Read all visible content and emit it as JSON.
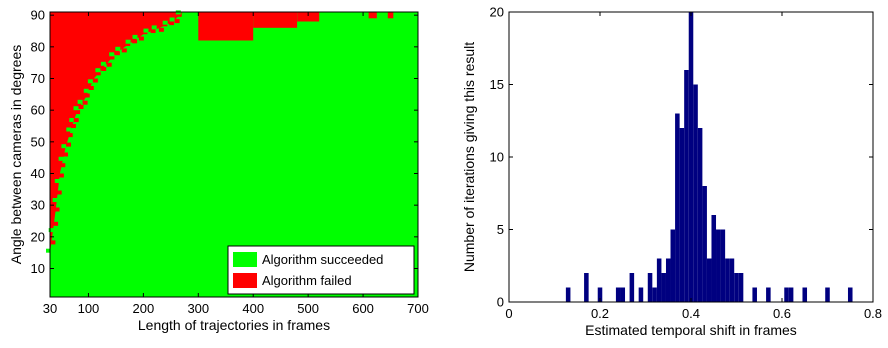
{
  "chart_data": [
    {
      "type": "heatmap",
      "title": "",
      "xlabel": "Length of trajectories in frames",
      "ylabel": "Angle between cameras in degrees",
      "xlim": [
        30,
        700
      ],
      "ylim": [
        1,
        91
      ],
      "xticks": [
        30,
        100,
        200,
        300,
        400,
        500,
        600,
        700
      ],
      "yticks": [
        10,
        20,
        30,
        40,
        50,
        60,
        70,
        80,
        90
      ],
      "legend_position": "bottom-right",
      "legend": [
        {
          "label": "Algorithm succeeded",
          "color": "#00ff00"
        },
        {
          "label": "Algorithm failed",
          "color": "#ff0000"
        }
      ],
      "background_value": "Algorithm succeeded",
      "failure_boundary": {
        "description_units": "for each trajectory length x, angles above y failed",
        "points": [
          {
            "x": 30,
            "y": 15
          },
          {
            "x": 40,
            "y": 28
          },
          {
            "x": 48,
            "y": 40
          },
          {
            "x": 58,
            "y": 48
          },
          {
            "x": 70,
            "y": 55
          },
          {
            "x": 80,
            "y": 60
          },
          {
            "x": 95,
            "y": 64
          },
          {
            "x": 110,
            "y": 70
          },
          {
            "x": 130,
            "y": 74
          },
          {
            "x": 150,
            "y": 78
          },
          {
            "x": 175,
            "y": 81
          },
          {
            "x": 200,
            "y": 84
          },
          {
            "x": 230,
            "y": 86
          },
          {
            "x": 255,
            "y": 88
          },
          {
            "x": 270,
            "y": 91
          }
        ]
      },
      "failure_patches": [
        {
          "x0": 300,
          "x1": 400,
          "y0": 82,
          "y1": 91
        },
        {
          "x0": 400,
          "x1": 480,
          "y0": 86,
          "y1": 91
        },
        {
          "x0": 480,
          "x1": 520,
          "y0": 88,
          "y1": 91
        },
        {
          "x0": 610,
          "x1": 625,
          "y0": 89,
          "y1": 91
        },
        {
          "x0": 645,
          "x1": 655,
          "y0": 89,
          "y1": 91
        }
      ]
    },
    {
      "type": "bar",
      "title": "",
      "xlabel": "Estimated temporal shift in frames",
      "ylabel": "Number of iterations giving this result",
      "xlim": [
        0,
        0.8
      ],
      "ylim": [
        0,
        20
      ],
      "xticks": [
        0,
        0.2,
        0.4,
        0.6,
        0.8
      ],
      "yticks": [
        0,
        5,
        10,
        15,
        20
      ],
      "color": "#000080",
      "bin_width": 0.01,
      "bins": [
        {
          "x": 0.13,
          "count": 1
        },
        {
          "x": 0.17,
          "count": 2
        },
        {
          "x": 0.2,
          "count": 1
        },
        {
          "x": 0.24,
          "count": 1
        },
        {
          "x": 0.25,
          "count": 1
        },
        {
          "x": 0.27,
          "count": 2
        },
        {
          "x": 0.29,
          "count": 1
        },
        {
          "x": 0.31,
          "count": 2
        },
        {
          "x": 0.32,
          "count": 1
        },
        {
          "x": 0.33,
          "count": 3
        },
        {
          "x": 0.34,
          "count": 2
        },
        {
          "x": 0.35,
          "count": 3
        },
        {
          "x": 0.36,
          "count": 5
        },
        {
          "x": 0.37,
          "count": 13
        },
        {
          "x": 0.38,
          "count": 12
        },
        {
          "x": 0.39,
          "count": 16
        },
        {
          "x": 0.4,
          "count": 20
        },
        {
          "x": 0.41,
          "count": 15
        },
        {
          "x": 0.42,
          "count": 12
        },
        {
          "x": 0.43,
          "count": 8
        },
        {
          "x": 0.44,
          "count": 3
        },
        {
          "x": 0.45,
          "count": 6
        },
        {
          "x": 0.46,
          "count": 5
        },
        {
          "x": 0.47,
          "count": 5
        },
        {
          "x": 0.48,
          "count": 3
        },
        {
          "x": 0.49,
          "count": 3
        },
        {
          "x": 0.5,
          "count": 2
        },
        {
          "x": 0.51,
          "count": 2
        },
        {
          "x": 0.54,
          "count": 1
        },
        {
          "x": 0.57,
          "count": 1
        },
        {
          "x": 0.61,
          "count": 1
        },
        {
          "x": 0.62,
          "count": 1
        },
        {
          "x": 0.65,
          "count": 1
        },
        {
          "x": 0.7,
          "count": 1
        },
        {
          "x": 0.75,
          "count": 1
        }
      ]
    }
  ]
}
